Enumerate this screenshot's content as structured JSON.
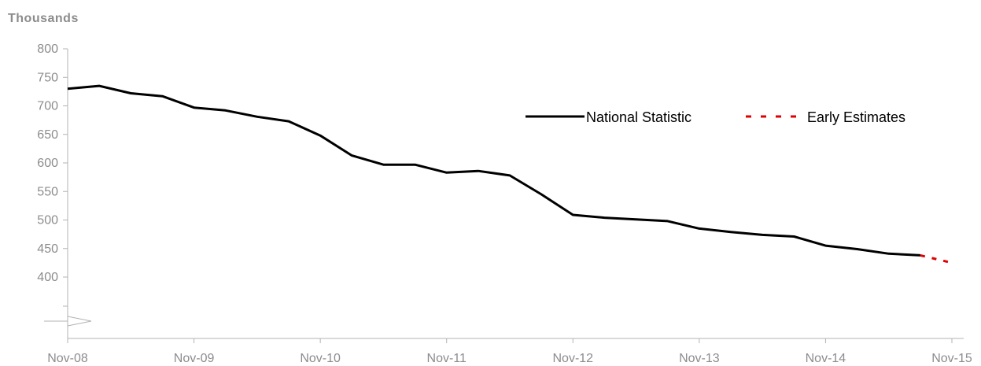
{
  "chart_data": {
    "type": "line",
    "y_unit_label": "Thousands",
    "y_ticks": [
      400,
      450,
      500,
      550,
      600,
      650,
      700,
      750,
      800
    ],
    "y_range": [
      400,
      800
    ],
    "y_axis_break": true,
    "x_tick_labels": [
      "Nov-08",
      "Nov-09",
      "Nov-10",
      "Nov-11",
      "Nov-12",
      "Nov-13",
      "Nov-14",
      "Nov-15"
    ],
    "x_dates": [
      "Nov-08",
      "Feb-09",
      "May-09",
      "Aug-09",
      "Nov-09",
      "Feb-10",
      "May-10",
      "Aug-10",
      "Nov-10",
      "Feb-11",
      "May-11",
      "Aug-11",
      "Nov-11",
      "Feb-12",
      "May-12",
      "Aug-12",
      "Nov-12",
      "Feb-13",
      "May-13",
      "Aug-13",
      "Nov-13",
      "Feb-14",
      "May-14",
      "Aug-14",
      "Nov-14",
      "Feb-15",
      "May-15",
      "Aug-15",
      "Nov-15"
    ],
    "series": [
      {
        "name": "National Statistic",
        "style": "solid",
        "color": "#000000",
        "values": [
          730,
          735,
          722,
          717,
          697,
          692,
          681,
          673,
          648,
          613,
          597,
          597,
          583,
          586,
          578,
          545,
          509,
          504,
          501,
          498,
          485,
          479,
          474,
          471,
          455,
          449,
          441,
          438,
          null
        ]
      },
      {
        "name": "Early Estimates",
        "style": "dashed",
        "color": "#e00000",
        "values": [
          null,
          null,
          null,
          null,
          null,
          null,
          null,
          null,
          null,
          null,
          null,
          null,
          null,
          null,
          null,
          null,
          null,
          null,
          null,
          null,
          null,
          null,
          null,
          null,
          null,
          null,
          null,
          438,
          425
        ]
      }
    ],
    "legend_position": "top-right",
    "grid": false
  }
}
